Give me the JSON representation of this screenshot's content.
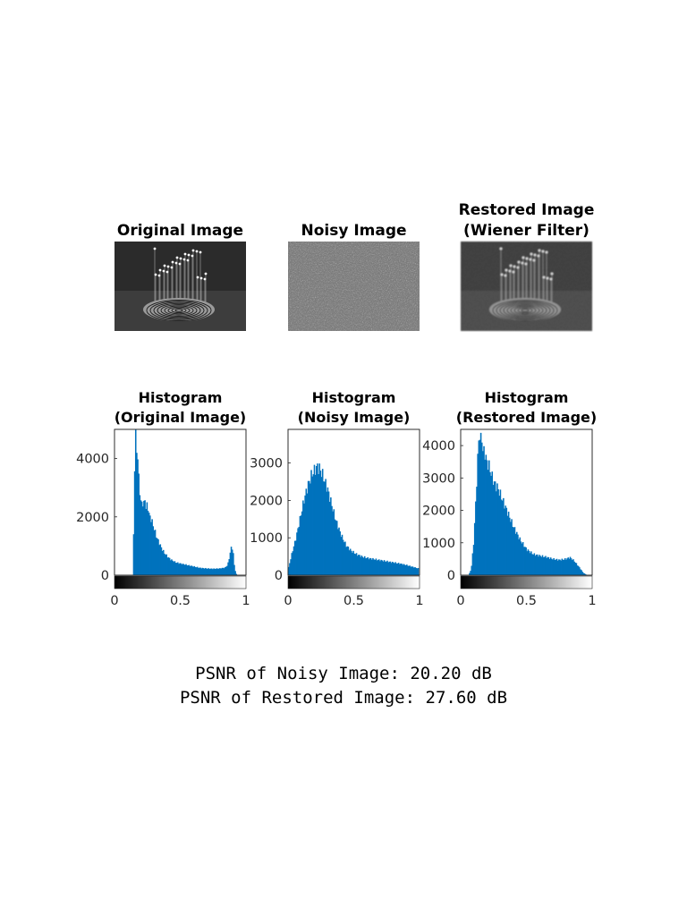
{
  "images": [
    {
      "title_lines": [
        "Original Image"
      ],
      "noise": 0,
      "blur": 0
    },
    {
      "title_lines": [
        "Noisy Image"
      ],
      "noise": 1,
      "blur": 0
    },
    {
      "title_lines": [
        "Restored Image",
        "(Wiener Filter)"
      ],
      "noise": 0.25,
      "blur": 1
    }
  ],
  "psnr": {
    "noisy": "PSNR of Noisy Image: 20.20 dB",
    "restored": "PSNR of Restored Image: 27.60 dB"
  },
  "colors": {
    "bar": "#0072BD",
    "axis": "#262626"
  },
  "chart_data": [
    {
      "type": "bar",
      "title": [
        "Histogram",
        "(Original Image)"
      ],
      "xlim": [
        0,
        1
      ],
      "ylim": [
        0,
        5000
      ],
      "xticks": [
        0,
        0.5,
        1
      ],
      "xtick_labels": [
        "0",
        "0.5",
        "1"
      ],
      "yticks": [
        0,
        2000,
        4000
      ],
      "ytick_labels": [
        "0",
        "2000",
        "4000"
      ],
      "colorbar": "grayscale 0 to 1",
      "x": [
        0.12,
        0.14,
        0.15,
        0.16,
        0.17,
        0.18,
        0.19,
        0.2,
        0.21,
        0.22,
        0.23,
        0.24,
        0.25,
        0.26,
        0.27,
        0.28,
        0.3,
        0.32,
        0.34,
        0.36,
        0.38,
        0.4,
        0.42,
        0.44,
        0.46,
        0.48,
        0.5,
        0.52,
        0.55,
        0.6,
        0.65,
        0.7,
        0.75,
        0.8,
        0.84,
        0.86,
        0.87,
        0.88,
        0.89,
        0.9,
        0.91,
        0.92,
        0.93,
        0.95
      ],
      "y": [
        0,
        0,
        3200,
        5000,
        4300,
        3600,
        3000,
        2400,
        2600,
        2300,
        2700,
        2200,
        2500,
        2100,
        2000,
        1900,
        1600,
        1300,
        1100,
        900,
        750,
        650,
        560,
        500,
        450,
        420,
        400,
        380,
        350,
        300,
        250,
        230,
        220,
        230,
        260,
        350,
        550,
        800,
        1000,
        850,
        350,
        100,
        0,
        0
      ]
    },
    {
      "type": "bar",
      "title": [
        "Histogram",
        "(Noisy Image)"
      ],
      "xlim": [
        0,
        1
      ],
      "ylim": [
        0,
        3900
      ],
      "xticks": [
        0,
        0.5,
        1
      ],
      "xtick_labels": [
        "0",
        "0.5",
        "1"
      ],
      "yticks": [
        0,
        1000,
        2000,
        3000
      ],
      "ytick_labels": [
        "0",
        "1000",
        "2000",
        "3000"
      ],
      "colorbar": "grayscale 0 to 1",
      "x": [
        0,
        0.03,
        0.06,
        0.09,
        0.12,
        0.15,
        0.18,
        0.2,
        0.22,
        0.24,
        0.26,
        0.28,
        0.3,
        0.33,
        0.36,
        0.4,
        0.44,
        0.48,
        0.52,
        0.56,
        0.6,
        0.65,
        0.7,
        0.75,
        0.8,
        0.85,
        0.9,
        0.95,
        0.99
      ],
      "y": [
        150,
        600,
        1000,
        1500,
        2000,
        2400,
        2700,
        2800,
        2900,
        2850,
        2700,
        2500,
        2300,
        1900,
        1500,
        1100,
        800,
        650,
        560,
        500,
        460,
        430,
        400,
        370,
        340,
        310,
        270,
        220,
        180
      ]
    },
    {
      "type": "bar",
      "title": [
        "Histogram",
        "(Restored Image)"
      ],
      "xlim": [
        0,
        1
      ],
      "ylim": [
        0,
        4500
      ],
      "xticks": [
        0,
        0.5,
        1
      ],
      "xtick_labels": [
        "0",
        "0.5",
        "1"
      ],
      "yticks": [
        0,
        1000,
        2000,
        3000,
        4000
      ],
      "ytick_labels": [
        "0",
        "1000",
        "2000",
        "3000",
        "4000"
      ],
      "colorbar": "grayscale 0 to 1",
      "x": [
        0.06,
        0.08,
        0.1,
        0.12,
        0.14,
        0.15,
        0.16,
        0.17,
        0.18,
        0.19,
        0.2,
        0.22,
        0.24,
        0.26,
        0.28,
        0.3,
        0.33,
        0.36,
        0.4,
        0.45,
        0.5,
        0.55,
        0.6,
        0.65,
        0.7,
        0.75,
        0.8,
        0.83,
        0.86,
        0.9,
        0.93,
        0.96
      ],
      "y": [
        0,
        200,
        1100,
        2800,
        4500,
        4100,
        4300,
        3700,
        3900,
        3600,
        3500,
        3300,
        3000,
        2800,
        2700,
        2500,
        2200,
        1900,
        1500,
        1100,
        800,
        650,
        600,
        560,
        500,
        470,
        500,
        550,
        450,
        250,
        80,
        0
      ]
    }
  ]
}
